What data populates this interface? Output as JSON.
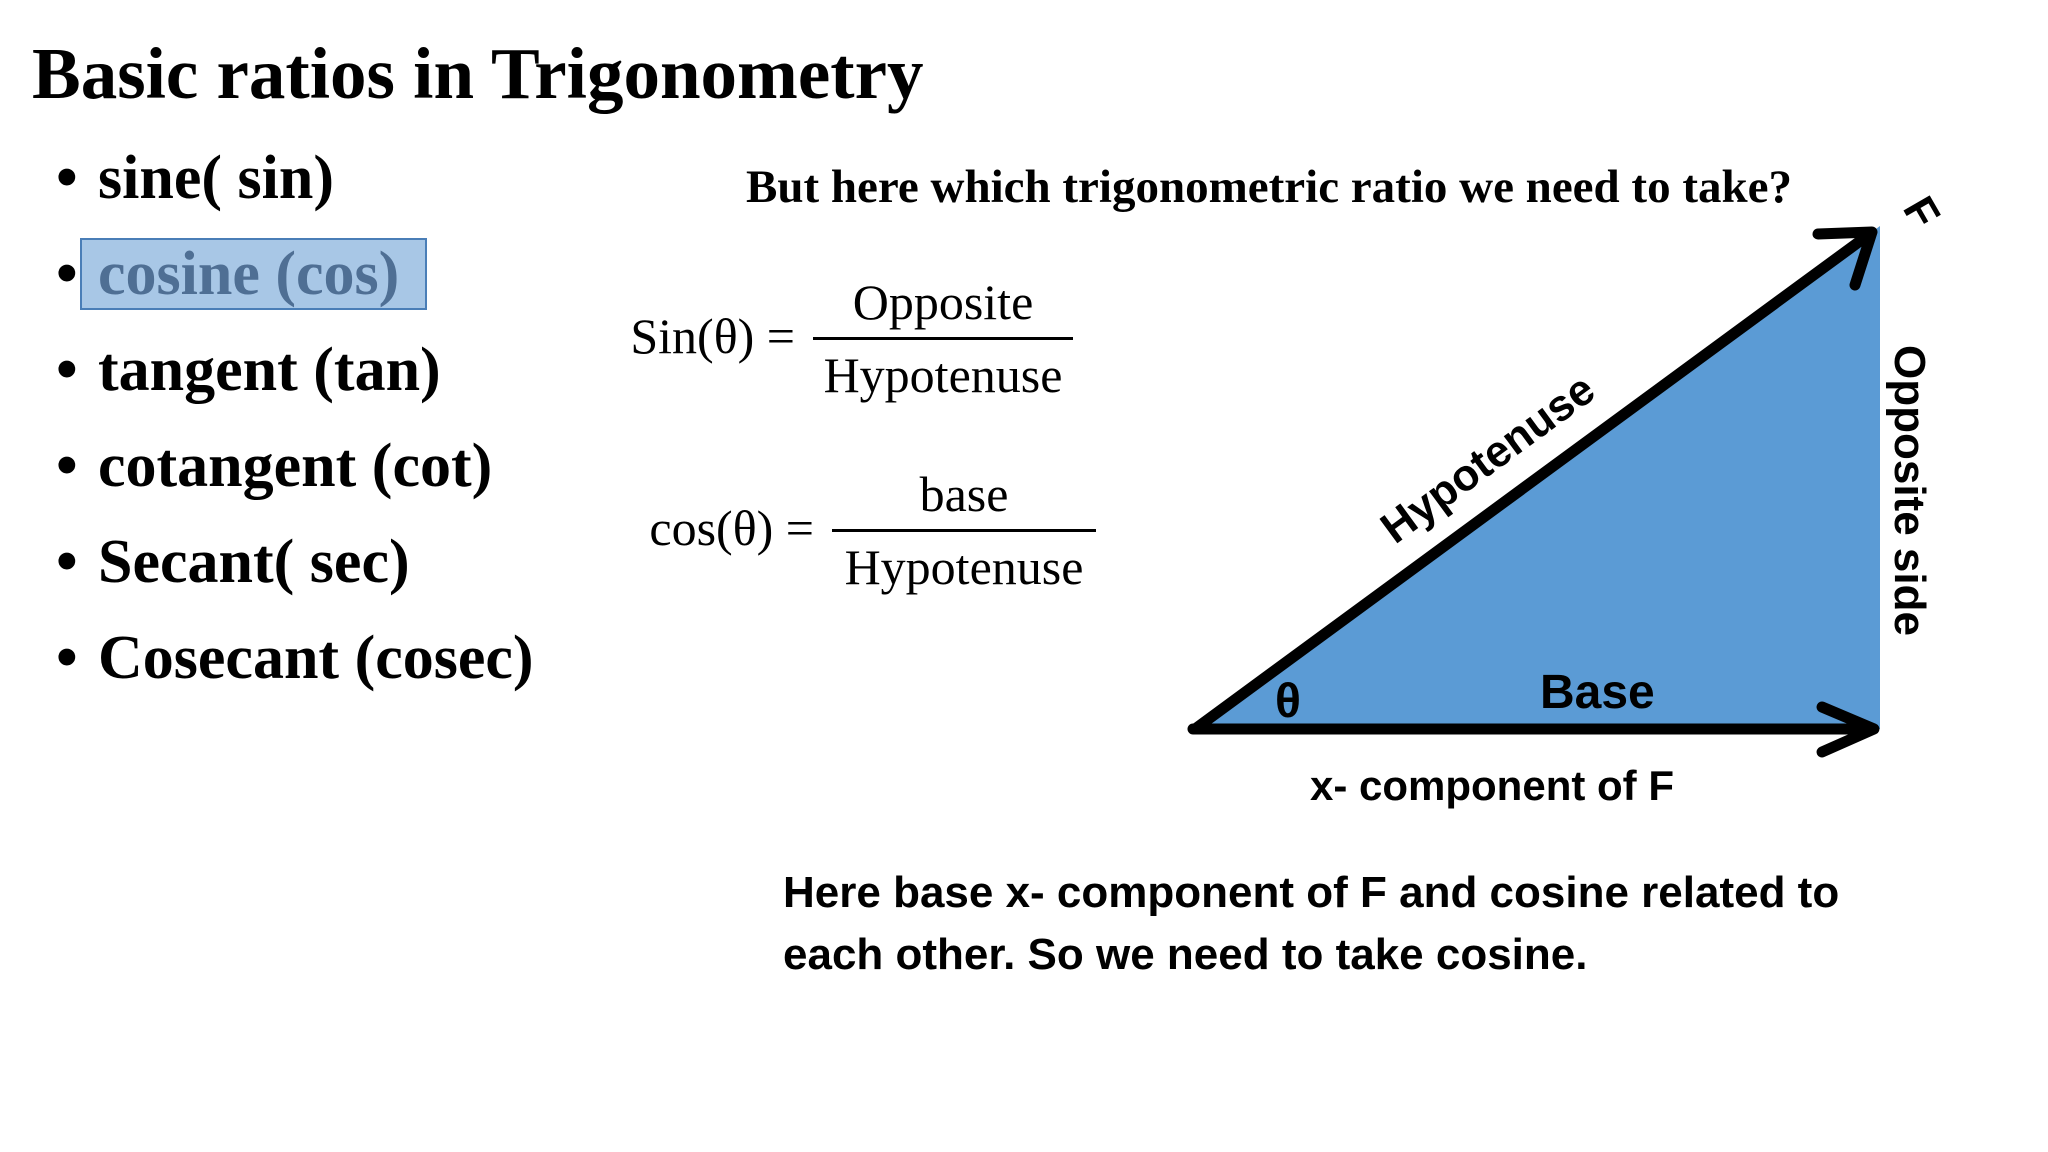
{
  "slide": {
    "title": "Basic ratios in Trigonometry",
    "ratios": [
      {
        "bullet": "•",
        "label": "sine( sin)"
      },
      {
        "bullet": "•",
        "label": "cosine (cos)"
      },
      {
        "bullet": "•",
        "label": "tangent (tan)"
      },
      {
        "bullet": "•",
        "label": "cotangent (cot)"
      },
      {
        "bullet": "•",
        "label": "Secant( sec)"
      },
      {
        "bullet": "•",
        "label": "Cosecant (cosec)"
      }
    ],
    "selected_ratio": "cosine (cos)",
    "question": "But here which trigonometric ratio we need to take?",
    "sin_formula": {
      "lhs": "Sin(θ) =",
      "numerator": "Opposite",
      "denominator": "Hypotenuse"
    },
    "cos_formula": {
      "lhs": "cos(θ) =",
      "numerator": "base",
      "denominator": "Hypotenuse"
    },
    "diagram": {
      "hypotenuse_label": "Hypotenuse",
      "opposite_label": "Opposite side",
      "base_label": "Base",
      "angle_label": "θ",
      "force_label": "F",
      "x_component_label": "x- component of F",
      "fill_color": "#5b9bd5",
      "edge_color": "#000000"
    },
    "conclusion": "Here base x- component of F and cosine related to each other. So we need to take cosine.",
    "highlight_color": "#a8c7e6"
  }
}
